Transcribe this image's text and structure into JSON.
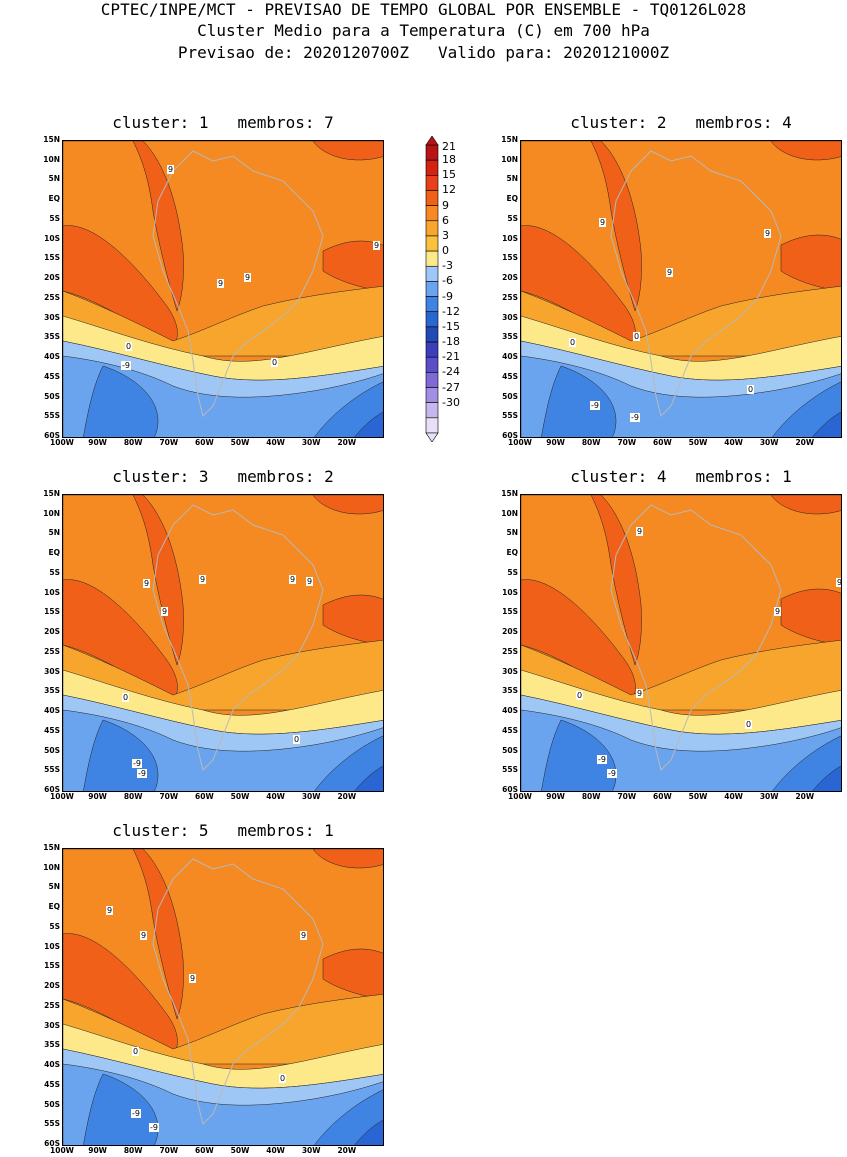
{
  "header": {
    "line1": "CPTEC/INPE/MCT - PREVISAO DE TEMPO GLOBAL POR ENSEMBLE - TQ0126L028",
    "line2": "Cluster Medio para a Temperatura (C) em 700 hPa",
    "line3": "Previsao de: 2020120700Z   Valido para: 2020121000Z"
  },
  "panels": [
    {
      "title": "cluster: 1   membros: 7",
      "contour_labels": [
        "9",
        "9",
        "9",
        "9",
        "0",
        "0",
        "-9"
      ]
    },
    {
      "title": "cluster: 2   membros: 4",
      "contour_labels": [
        "9",
        "9",
        "9",
        "0",
        "0",
        "0",
        "-9",
        "-9"
      ]
    },
    {
      "title": "cluster: 3   membros: 2",
      "contour_labels": [
        "9",
        "9",
        "9",
        "9",
        "9",
        "0",
        "0",
        "-9",
        "-9"
      ]
    },
    {
      "title": "cluster: 4   membros: 1",
      "contour_labels": [
        "9",
        "9",
        "9",
        "9",
        "0",
        "0",
        "-9",
        "-9"
      ]
    },
    {
      "title": "cluster: 5   membros: 1",
      "contour_labels": [
        "9",
        "9",
        "9",
        "9",
        "0",
        "0",
        "-9",
        "-9"
      ]
    }
  ],
  "axes": {
    "lat_labels": [
      "15N",
      "10N",
      "5N",
      "EQ",
      "5S",
      "10S",
      "15S",
      "20S",
      "25S",
      "30S",
      "35S",
      "40S",
      "45S",
      "50S",
      "55S",
      "60S"
    ],
    "lon_labels": [
      "100W",
      "90W",
      "80W",
      "70W",
      "60W",
      "50W",
      "40W",
      "30W",
      "20W"
    ]
  },
  "colorbar": {
    "labels": [
      "21",
      "18",
      "15",
      "12",
      "9",
      "6",
      "3",
      "0",
      "-3",
      "-6",
      "-9",
      "-12",
      "-15",
      "-18",
      "-21",
      "-24",
      "-27",
      "-30"
    ],
    "colors": [
      "#b81414",
      "#d4230f",
      "#e8401a",
      "#f06018",
      "#f58a22",
      "#f7a52c",
      "#fbc03c",
      "#fde98a",
      "#9fc7f5",
      "#6aa4ee",
      "#3f84e3",
      "#2a66d3",
      "#2349b5",
      "#3b3fb8",
      "#5b4ec9",
      "#7e6ad6",
      "#a28fe2",
      "#c7b7ef",
      "#e8e0f8"
    ]
  }
}
